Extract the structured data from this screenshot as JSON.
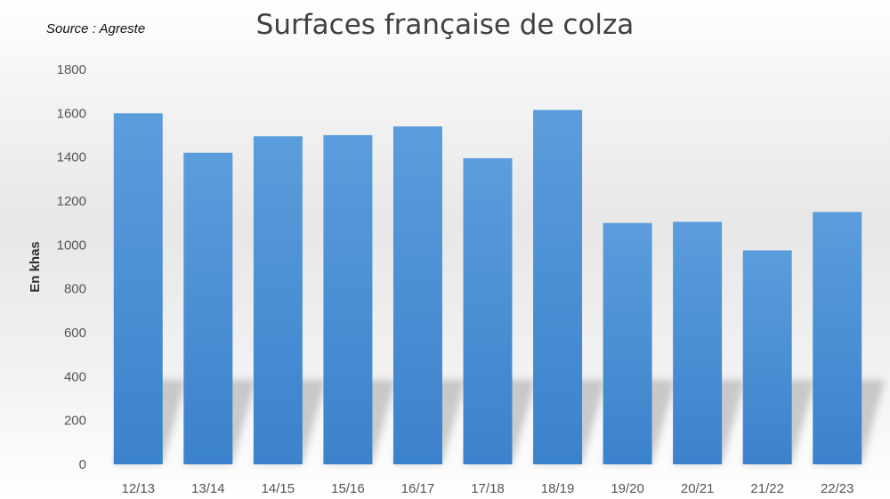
{
  "chart_data": {
    "type": "bar",
    "title": "Surfaces française de colza",
    "source": "Source : Agreste",
    "xlabel": "",
    "ylabel": "En khas",
    "ylim": [
      0,
      1800
    ],
    "yticks": [
      0,
      200,
      400,
      600,
      800,
      1000,
      1200,
      1400,
      1600,
      1800
    ],
    "categories": [
      "12/13",
      "13/14",
      "14/15",
      "15/16",
      "16/17",
      "17/18",
      "18/19",
      "19/20",
      "20/21",
      "21/22",
      "22/23"
    ],
    "values": [
      1600,
      1420,
      1495,
      1500,
      1540,
      1395,
      1615,
      1100,
      1105,
      975,
      1150
    ],
    "grid": false,
    "bar_color": "#4a8fd6"
  }
}
